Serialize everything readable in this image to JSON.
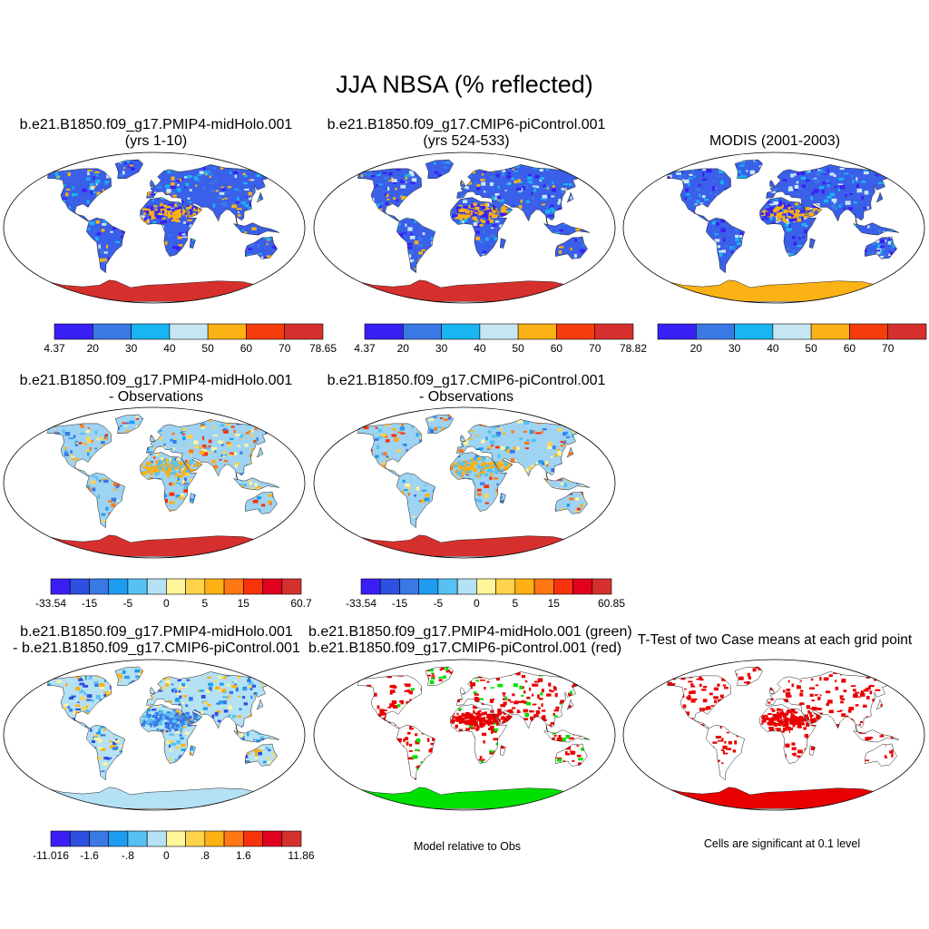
{
  "title": "JJA NBSA (% reflected)",
  "panels": [
    {
      "id": "p1",
      "title1": "b.e21.B1850.f09_g17.PMIP4-midHolo.001",
      "title2": "(yrs 1-10)",
      "palette": "abs",
      "variant": "model"
    },
    {
      "id": "p2",
      "title1": "b.e21.B1850.f09_g17.CMIP6-piControl.001",
      "title2": "(yrs 524-533)",
      "palette": "abs",
      "variant": "model"
    },
    {
      "id": "p3",
      "title1": "MODIS (2001-2003)",
      "title2": "",
      "palette": "abs",
      "variant": "obs"
    },
    {
      "id": "p4",
      "title1": "b.e21.B1850.f09_g17.PMIP4-midHolo.001",
      "title2": "- Observations",
      "palette": "diff",
      "variant": "diff"
    },
    {
      "id": "p5",
      "title1": "b.e21.B1850.f09_g17.CMIP6-piControl.001",
      "title2": "- Observations",
      "palette": "diff",
      "variant": "diff"
    },
    {
      "id": "p6",
      "title1": "b.e21.B1850.f09_g17.PMIP4-midHolo.001",
      "title2": "- b.e21.B1850.f09_g17.CMIP6-piControl.001",
      "palette": "diff2",
      "variant": "diff2"
    },
    {
      "id": "p7",
      "title1": "b.e21.B1850.f09_g17.PMIP4-midHolo.001 (green)",
      "title2": "b.e21.B1850.f09_g17.CMIP6-piControl.001 (red)",
      "palette": "rg",
      "variant": "rg"
    },
    {
      "id": "p8",
      "title1": "T-Test of two Case means at each grid point",
      "title2": "",
      "palette": "sig",
      "variant": "sig"
    }
  ],
  "colorbars": [
    {
      "id": "cb1",
      "colors": [
        "#3a1ff5",
        "#3a78e6",
        "#19b4f2",
        "#c7e6f4",
        "#fab215",
        "#f73d0e",
        "#d5302d"
      ],
      "labels": [
        "4.37",
        "20",
        "30",
        "40",
        "50",
        "60",
        "70",
        "78.65"
      ]
    },
    {
      "id": "cb2",
      "colors": [
        "#3a1ff5",
        "#3a78e6",
        "#19b4f2",
        "#c7e6f4",
        "#fab215",
        "#f73d0e",
        "#d5302d"
      ],
      "labels": [
        "4.37",
        "20",
        "30",
        "40",
        "50",
        "60",
        "70",
        "78.82"
      ]
    },
    {
      "id": "cb3",
      "colors": [
        "#3a1ff5",
        "#3a78e6",
        "#19b4f2",
        "#c7e6f4",
        "#fab215",
        "#f73d0e",
        "#d5302d"
      ],
      "labels": [
        "",
        "20",
        "30",
        "40",
        "50",
        "60",
        "70",
        ""
      ]
    },
    {
      "id": "cb4",
      "colors": [
        "#3a1ff5",
        "#2d50e0",
        "#3a78e6",
        "#1e9cf0",
        "#57c1f3",
        "#b4e1f4",
        "#fff59b",
        "#ffd24b",
        "#ffb014",
        "#ff7814",
        "#f7320f",
        "#e1001e",
        "#d5302d"
      ],
      "labels": [
        "-33.54",
        "-15",
        "-5",
        "0",
        "5",
        "15",
        "60.7"
      ],
      "labelAt": [
        0,
        2,
        4,
        6,
        8,
        10,
        13
      ]
    },
    {
      "id": "cb5",
      "colors": [
        "#3a1ff5",
        "#2d50e0",
        "#3a78e6",
        "#1e9cf0",
        "#57c1f3",
        "#b4e1f4",
        "#fff59b",
        "#ffd24b",
        "#ffb014",
        "#ff7814",
        "#f7320f",
        "#e1001e",
        "#d5302d"
      ],
      "labels": [
        "-33.54",
        "-15",
        "-5",
        "0",
        "5",
        "15",
        "60.85"
      ],
      "labelAt": [
        0,
        2,
        4,
        6,
        8,
        10,
        13
      ]
    },
    {
      "id": "cb6",
      "colors": [
        "#3a1ff5",
        "#2d50e0",
        "#3a78e6",
        "#1e9cf0",
        "#57c1f3",
        "#b4e1f4",
        "#fff59b",
        "#ffd24b",
        "#ffb014",
        "#ff7814",
        "#f7320f",
        "#e1001e",
        "#d5302d"
      ],
      "labels": [
        "-11.016",
        "-1.6",
        "-.8",
        "0",
        ".8",
        "1.6",
        "11.86"
      ],
      "labelAt": [
        0,
        2,
        4,
        6,
        8,
        10,
        13
      ]
    }
  ],
  "notes": {
    "model_relative": "Model relative to Obs",
    "significance": "Cells are significant at 0.1 level"
  },
  "colors": {
    "land_abs": "#3a5fe8",
    "green": "#00e000",
    "red": "#e80000",
    "antarctic_model": "#d5302d",
    "antarctic_obs": "#fab215"
  }
}
